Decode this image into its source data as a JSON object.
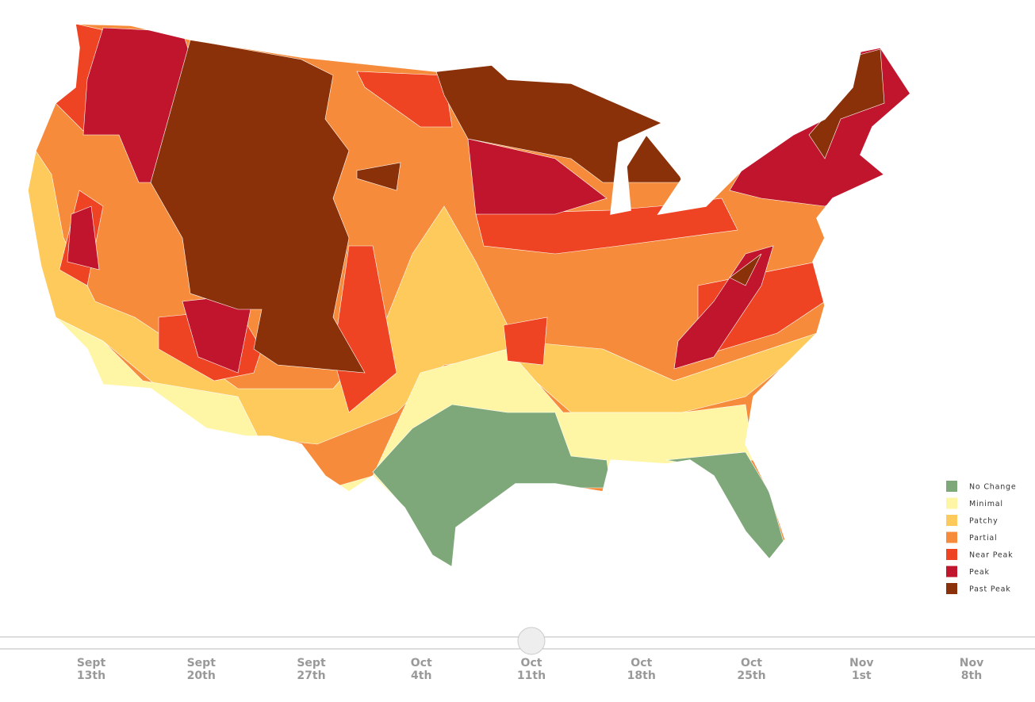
{
  "legend": [
    {
      "label": "No Change",
      "color": "#7fa87a"
    },
    {
      "label": "Minimal",
      "color": "#fef5a5"
    },
    {
      "label": "Patchy",
      "color": "#fdca5b"
    },
    {
      "label": "Partial",
      "color": "#f68c3b"
    },
    {
      "label": "Near Peak",
      "color": "#ef4423"
    },
    {
      "label": "Peak",
      "color": "#c1152e"
    },
    {
      "label": "Past Peak",
      "color": "#8b3109"
    }
  ],
  "timeline": [
    {
      "month": "Sept",
      "day": "13th"
    },
    {
      "month": "Sept",
      "day": "20th"
    },
    {
      "month": "Sept",
      "day": "27th"
    },
    {
      "month": "Oct",
      "day": "4th"
    },
    {
      "month": "Oct",
      "day": "11th"
    },
    {
      "month": "Oct",
      "day": "18th"
    },
    {
      "month": "Oct",
      "day": "25th"
    },
    {
      "month": "Nov",
      "day": "1st"
    },
    {
      "month": "Nov",
      "day": "8th"
    }
  ]
}
